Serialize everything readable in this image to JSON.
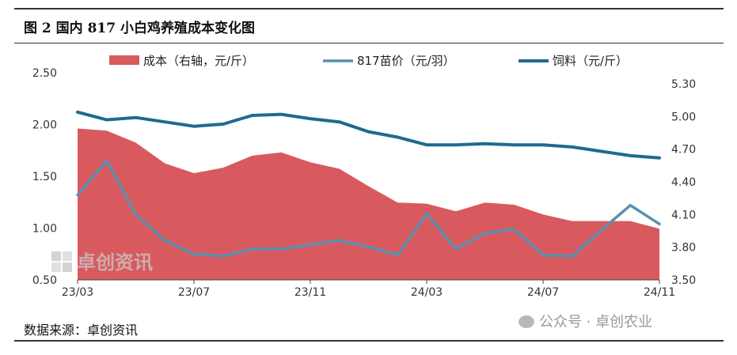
{
  "header": {
    "title": "图 2 国内 817 小白鸡养殖成本变化图"
  },
  "footer": {
    "source": "数据来源：卓创资讯",
    "wechat_mark": "公众号 · 卓创农业"
  },
  "watermark": {
    "text": "卓创资讯"
  },
  "chart_data": {
    "type": "line",
    "x": [
      "23/03",
      "23/04",
      "23/05",
      "23/06",
      "23/07",
      "23/08",
      "23/09",
      "23/10",
      "23/11",
      "23/12",
      "24/01",
      "24/02",
      "24/03",
      "24/04",
      "24/05",
      "24/06",
      "24/07",
      "24/08",
      "24/09",
      "24/10",
      "24/11"
    ],
    "x_tick_labels": [
      "23/03",
      "23/07",
      "23/11",
      "24/03",
      "24/07",
      "24/11"
    ],
    "left_axis": {
      "ticks": [
        "0.50",
        "1.00",
        "1.50",
        "2.00",
        "2.50"
      ],
      "range": [
        0.5,
        2.5
      ]
    },
    "right_axis": {
      "ticks": [
        "3.50",
        "3.80",
        "4.10",
        "4.40",
        "4.70",
        "5.00",
        "5.30"
      ],
      "range": [
        3.5,
        5.3
      ]
    },
    "series": [
      {
        "name": "成本（右轴，元/斤）",
        "kind": "area",
        "axis": "right",
        "color": "#d85a5e",
        "values": [
          4.89,
          4.87,
          4.76,
          4.57,
          4.48,
          4.53,
          4.64,
          4.67,
          4.58,
          4.52,
          4.36,
          4.21,
          4.2,
          4.13,
          4.21,
          4.19,
          4.1,
          4.04,
          4.04,
          4.04,
          3.97
        ]
      },
      {
        "name": "817苗价（元/羽）",
        "kind": "line",
        "axis": "left",
        "color": "#5a90b0",
        "values": [
          1.32,
          1.65,
          1.13,
          0.88,
          0.75,
          0.73,
          0.8,
          0.8,
          0.84,
          0.88,
          0.82,
          0.74,
          1.14,
          0.8,
          0.95,
          0.99,
          0.74,
          0.73,
          0.98,
          1.22,
          1.04
        ]
      },
      {
        "name": "饲料（元/斤）",
        "kind": "line",
        "axis": "right",
        "color": "#1f6b8e",
        "values": [
          5.04,
          4.97,
          4.99,
          4.95,
          4.91,
          4.93,
          5.01,
          5.02,
          4.98,
          4.95,
          4.86,
          4.81,
          4.74,
          4.74,
          4.75,
          4.74,
          4.74,
          4.72,
          4.68,
          4.64,
          4.62
        ]
      }
    ],
    "grid": false,
    "legend": "top"
  }
}
